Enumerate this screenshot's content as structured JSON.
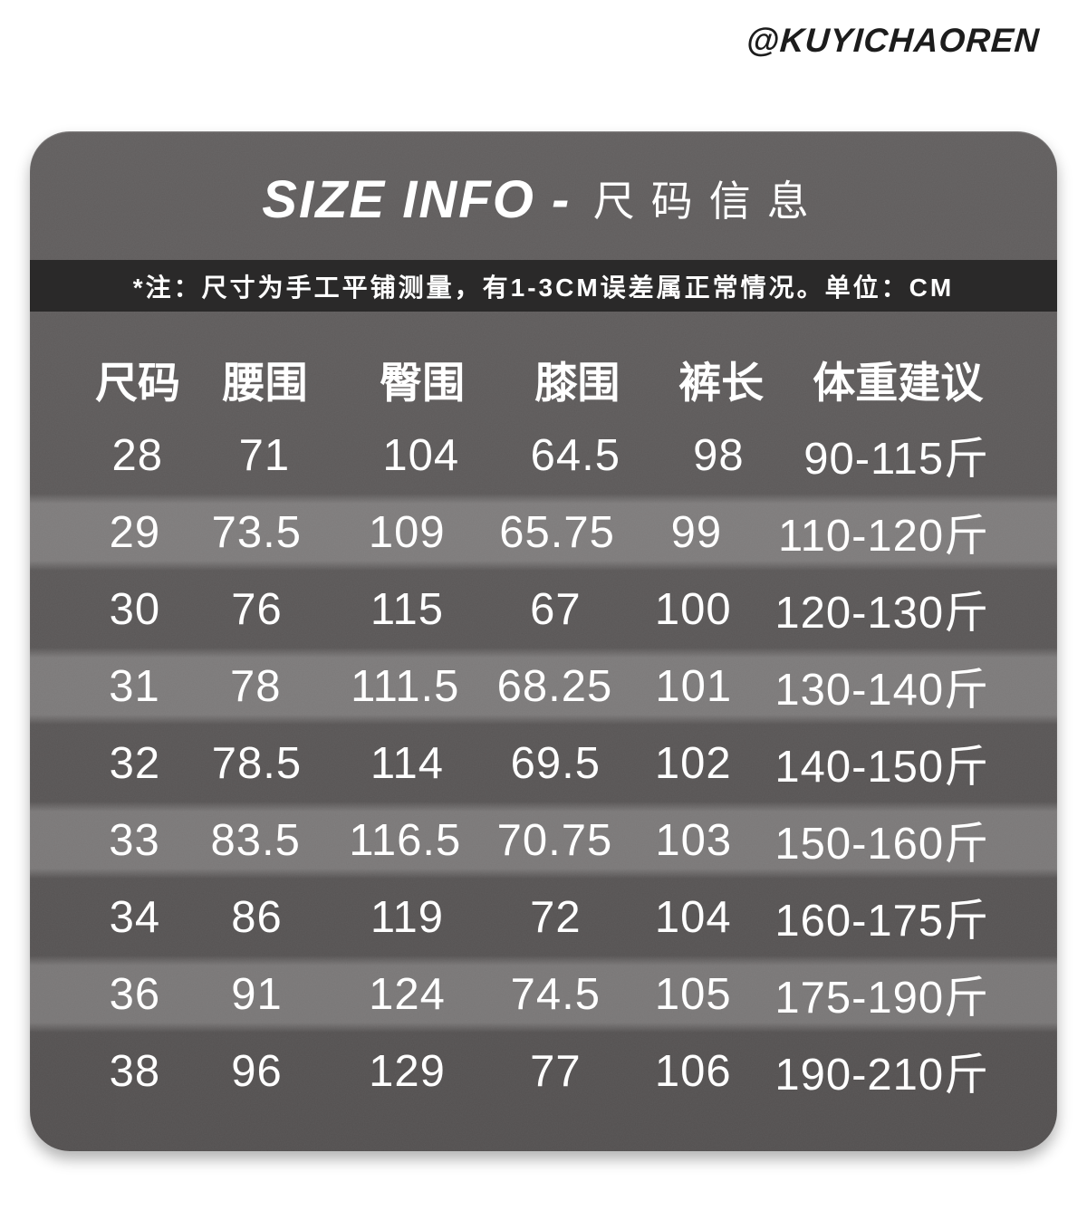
{
  "watermark": "@KUYICHAOREN",
  "card": {
    "title_en": "SIZE INFO -",
    "title_zh": "尺码信息"
  },
  "colors": {
    "page_bg": "#ffffff",
    "card_bg_top": "#625f5f",
    "card_bg_bottom": "#535050",
    "banner_bg": "#2a2929",
    "stripe_overlay": "rgba(255,255,255,0.21)",
    "text": "#ffffff",
    "watermark_text": "#1c1c1c"
  },
  "chart_data": {
    "type": "table",
    "title": "SIZE INFO - 尺码信息",
    "note": "*注：尺寸为手工平铺测量，有1-3CM误差属正常情况。单位：CM",
    "unit": "CM",
    "columns": [
      "尺码",
      "腰围",
      "臀围",
      "膝围",
      "裤长",
      "体重建议"
    ],
    "rows": [
      [
        "28",
        "71",
        "104",
        "64.5",
        "98",
        "90-115斤"
      ],
      [
        "29",
        "73.5",
        "109",
        "65.75",
        "99",
        "110-120斤"
      ],
      [
        "30",
        "76",
        "115",
        "67",
        "100",
        "120-130斤"
      ],
      [
        "31",
        "78",
        "111.5",
        "68.25",
        "101",
        "130-140斤"
      ],
      [
        "32",
        "78.5",
        "114",
        "69.5",
        "102",
        "140-150斤"
      ],
      [
        "33",
        "83.5",
        "116.5",
        "70.75",
        "103",
        "150-160斤"
      ],
      [
        "34",
        "86",
        "119",
        "72",
        "104",
        "160-175斤"
      ],
      [
        "36",
        "91",
        "124",
        "74.5",
        "105",
        "175-190斤"
      ],
      [
        "38",
        "96",
        "129",
        "77",
        "106",
        "190-210斤"
      ]
    ],
    "highlighted_row_indices": [
      1,
      3,
      5,
      7
    ],
    "legend_position": "none",
    "grid": false
  }
}
